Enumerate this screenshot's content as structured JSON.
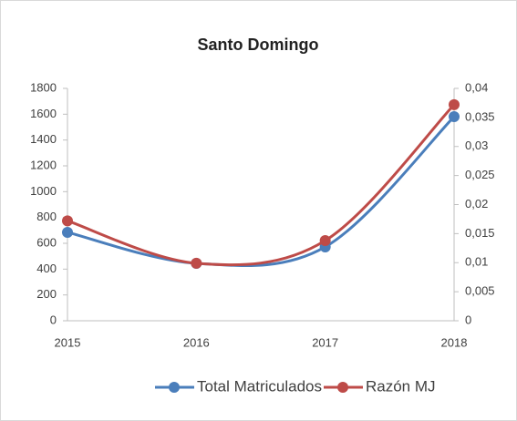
{
  "chart_data": {
    "type": "line",
    "title": "Santo Domingo",
    "categories": [
      "2015",
      "2016",
      "2017",
      "2018"
    ],
    "series": [
      {
        "name": "Total Matriculados",
        "color": "#4a7ebb",
        "values": [
          685,
          445,
          572,
          1581
        ]
      },
      {
        "name": "Razón MJ",
        "color": "#be4b48",
        "axis": "y2",
        "values": [
          0.0172,
          0.0099,
          0.0138,
          0.0372
        ]
      }
    ],
    "ylim": [
      0,
      1800
    ],
    "yticks": [
      0,
      200,
      400,
      600,
      800,
      1000,
      1200,
      1400,
      1600,
      1800
    ],
    "y2lim": [
      0,
      0.04
    ],
    "y2ticks": [
      0,
      {
        "value": 0.005,
        "label": "0,005"
      },
      {
        "value": 0.01,
        "label": "0,01"
      },
      {
        "value": 0.015,
        "label": "0,015"
      },
      {
        "value": 0.02,
        "label": "0,02"
      },
      {
        "value": 0.025,
        "label": "0,025"
      },
      {
        "value": 0.03,
        "label": "0,03"
      },
      {
        "value": 0.035,
        "label": "0,035"
      },
      {
        "value": 0.04,
        "label": "0,04"
      }
    ],
    "smooth": true,
    "legend": "bottom"
  }
}
